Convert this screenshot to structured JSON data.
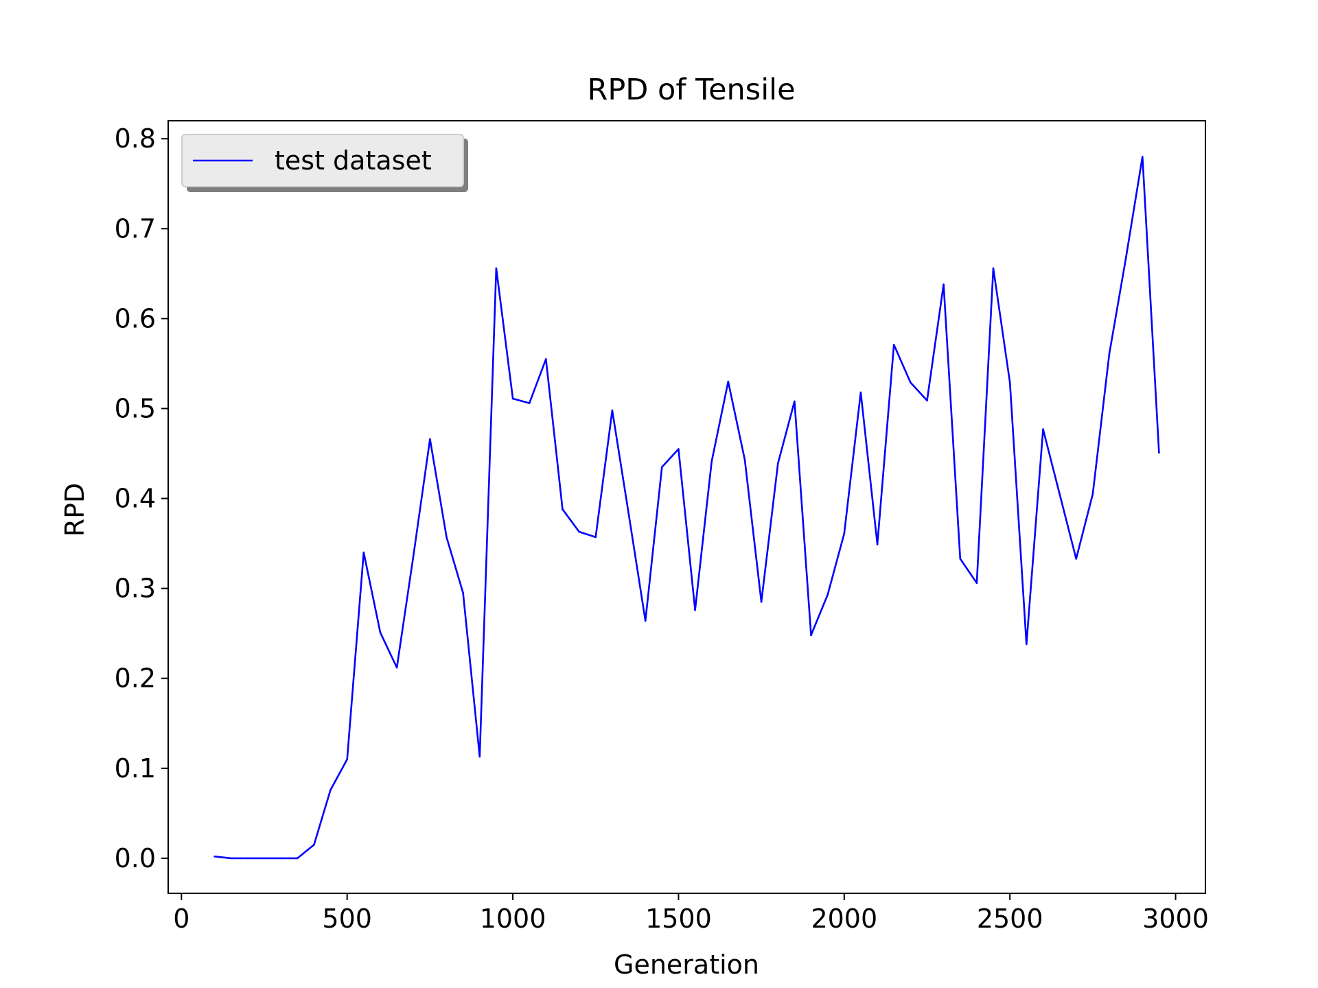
{
  "chart_data": {
    "type": "line",
    "title": "RPD of Tensile",
    "xlabel": "Generation",
    "ylabel": "RPD",
    "xlim": [
      -40,
      3090
    ],
    "ylim": [
      -0.039,
      0.82
    ],
    "xticks": [
      0,
      500,
      1000,
      1500,
      2000,
      2500,
      3000
    ],
    "xtick_labels": [
      "0",
      "500",
      "1000",
      "1500",
      "2000",
      "2500",
      "3000"
    ],
    "yticks": [
      0.0,
      0.1,
      0.2,
      0.3,
      0.4,
      0.5,
      0.6,
      0.7,
      0.8
    ],
    "ytick_labels": [
      "0.0",
      "0.1",
      "0.2",
      "0.3",
      "0.4",
      "0.5",
      "0.6",
      "0.7",
      "0.8"
    ],
    "grid": false,
    "legend_position": "top-left",
    "series": [
      {
        "name": "test dataset",
        "color": "#0000ff",
        "x": [
          100,
          150,
          200,
          250,
          300,
          350,
          400,
          450,
          500,
          550,
          600,
          650,
          700,
          750,
          800,
          850,
          900,
          950,
          1000,
          1050,
          1100,
          1150,
          1200,
          1250,
          1300,
          1350,
          1400,
          1450,
          1500,
          1550,
          1600,
          1650,
          1700,
          1750,
          1800,
          1850,
          1900,
          1950,
          2000,
          2050,
          2100,
          2150,
          2200,
          2250,
          2300,
          2350,
          2400,
          2450,
          2500,
          2550,
          2600,
          2650,
          2700,
          2750,
          2800,
          2850,
          2900,
          2950
        ],
        "y": [
          0.002,
          0.0,
          0.0,
          0.0,
          0.0,
          0.0,
          0.015,
          0.076,
          0.11,
          0.34,
          0.251,
          0.212,
          0.336,
          0.466,
          0.357,
          0.295,
          0.113,
          0.656,
          0.511,
          0.506,
          0.555,
          0.388,
          0.363,
          0.357,
          0.498,
          0.382,
          0.264,
          0.435,
          0.455,
          0.276,
          0.441,
          0.53,
          0.443,
          0.285,
          0.439,
          0.508,
          0.248,
          0.293,
          0.361,
          0.518,
          0.349,
          0.571,
          0.529,
          0.509,
          0.638,
          0.333,
          0.306,
          0.656,
          0.529,
          0.238,
          0.477,
          0.405,
          0.333,
          0.405,
          0.561,
          0.667,
          0.78,
          0.451
        ]
      }
    ]
  }
}
